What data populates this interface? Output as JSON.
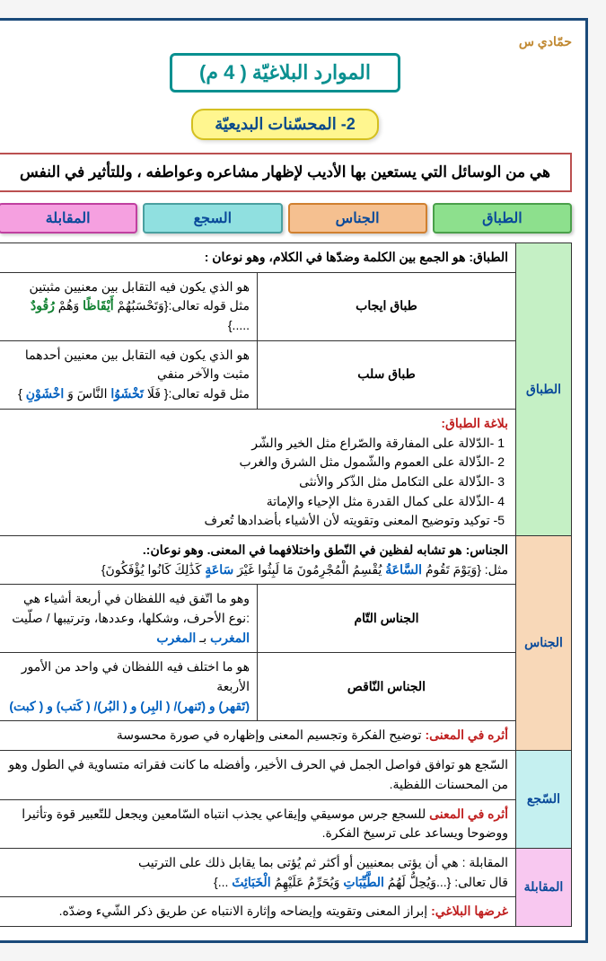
{
  "author": "حمّادي س",
  "main_title": "الموارد البلاغيّة ( 4 م)",
  "sub_title": "2- المحسّنات البديعيّة",
  "definition": "هي من الوسائل التي يستعين بها الأديب لإظهار مشاعره وعواطفه ، وللتأثير في النفس",
  "cats": {
    "c1": "الطباق",
    "c2": "الجناس",
    "c3": "السجع",
    "c4": "المقابلة"
  },
  "tibaq": {
    "side": "الطباق",
    "header": "الطباق: هو الجمع بين الكلمة وضدّها في الكلام، وهو نوعان :",
    "ijab_lbl": "طباق ايجاب",
    "ijab_txt": "هو الذي يكون فيه التقابل بين معنيين مثبتين",
    "ijab_ex_pre": "مثل قوله تعالى:{وَتَحْسَبُهُمْ ",
    "ijab_ex_w1": "أَيْقَاظًا",
    "ijab_ex_mid": " وَهُمْ ",
    "ijab_ex_w2": "رُقُودٌ",
    "ijab_ex_post": ".....}",
    "salb_lbl": "طباق سلب",
    "salb_txt": "هو الذي يكون فيه التقابل بين معنيين أحدهما مثبت والآخر منفي",
    "salb_ex_pre": "مثل قوله تعالى:{ فَلَا ",
    "salb_ex_w1": "تَخْشَوُا",
    "salb_ex_mid": " النَّاسَ وَ",
    "salb_ex_w2": "اخْشَوْنِ",
    "salb_ex_post": "}",
    "bal_title": "بلاغة الطباق:",
    "b1": "1 -الدّلالة على المفارقة والصّراع مثل الخير والشّر",
    "b2": "2 -الذّلالة على العموم والشّمول مثل الشرق والغرب",
    "b3": "3 -الذّلالة على التكامل مثل الذّكر والأنثى",
    "b4": "4 -الذّلالة على كمال القدرة مثل الإحياء والإماتة",
    "b5": "5- توكيد وتوضيح المعنى وتقويته لأن الأشياء بأضدادها تُعرف"
  },
  "jinas": {
    "side": "الجناس",
    "header": "الجناس: هو تشابه لفظين في النّطق واختلافهما في المعنى. وهو نوعان:.",
    "ex_pre": "مثل: {وَيَوْمَ تَقُومُ ",
    "ex_w1": "السَّاعَةُ",
    "ex_mid1": " يُقْسِمُ الْمُجْرِمُونَ مَا لَبِثُوا غَيْرَ ",
    "ex_w2": "سَاعَةٍ",
    "ex_post": " كَذَٰلِكَ كَانُوا يُؤْفَكُونَ}",
    "tam_lbl": "الجناس التّام",
    "tam_txt1": "وهو ما اتّفق فيه اللفظان في أربعة أشياء هي :نوع الأحرف، وشكلها، وعددها، وترتيبها /   صلّيت ",
    "tam_w1": "المغرب",
    "tam_mid": " بـ",
    "tam_w2": "المغرب",
    "naq_lbl": "الجناس النّاقص",
    "naq_txt": "هو ما اختلف فيه اللفظان في واحد من الأمور الأربعة",
    "naq_pairs": "(تَقهر) و (تَنهر)/ ( البِر) و ( البُر)/ ( كَتب) و ( كبت)",
    "athar_lbl": "أثره في المعنى:",
    "athar_txt": " توضيح الفكرة وتجسيم المعنى وإظهاره في صورة محسوسة"
  },
  "saja": {
    "side": "السّجع",
    "def": "السّجع هو توافق فواصل الجمل في الحرف الأخير، وأفضله ما كانت فقراته متساوية في الطول وهو من المحسنات اللفظية.",
    "athar_lbl": "أثره في المعنى",
    "athar_txt": " للسجع جرس موسيقي وإيقاعي يجذب انتباه السّامعين ويجعل للتّعبير قوة وتأثيرا ووضوحا ويساعد على ترسيخ الفكرة."
  },
  "muqabala": {
    "side": "المقابلة",
    "def": "المقابلة : هي أن يؤتى بمعنيين أو أكثر ثم يُؤتى بما يقابل ذلك على الترتيب",
    "ex_pre": "قال تعالى: {...وَيُحِلُّ لَهُمُ ",
    "ex_w1": "الطَّيِّبَاتِ",
    "ex_mid": " وَيُحَرِّمُ عَلَيْهِمُ ",
    "ex_w2": "الْخَبَائِثَ",
    "ex_post": "...}",
    "gh_lbl": "غرضها البلاغي:",
    "gh_txt": " إبراز المعنى وتقويته وإيضاحه وإثارة الانتباه عن طريق ذكر الشّيء وضدّه."
  }
}
